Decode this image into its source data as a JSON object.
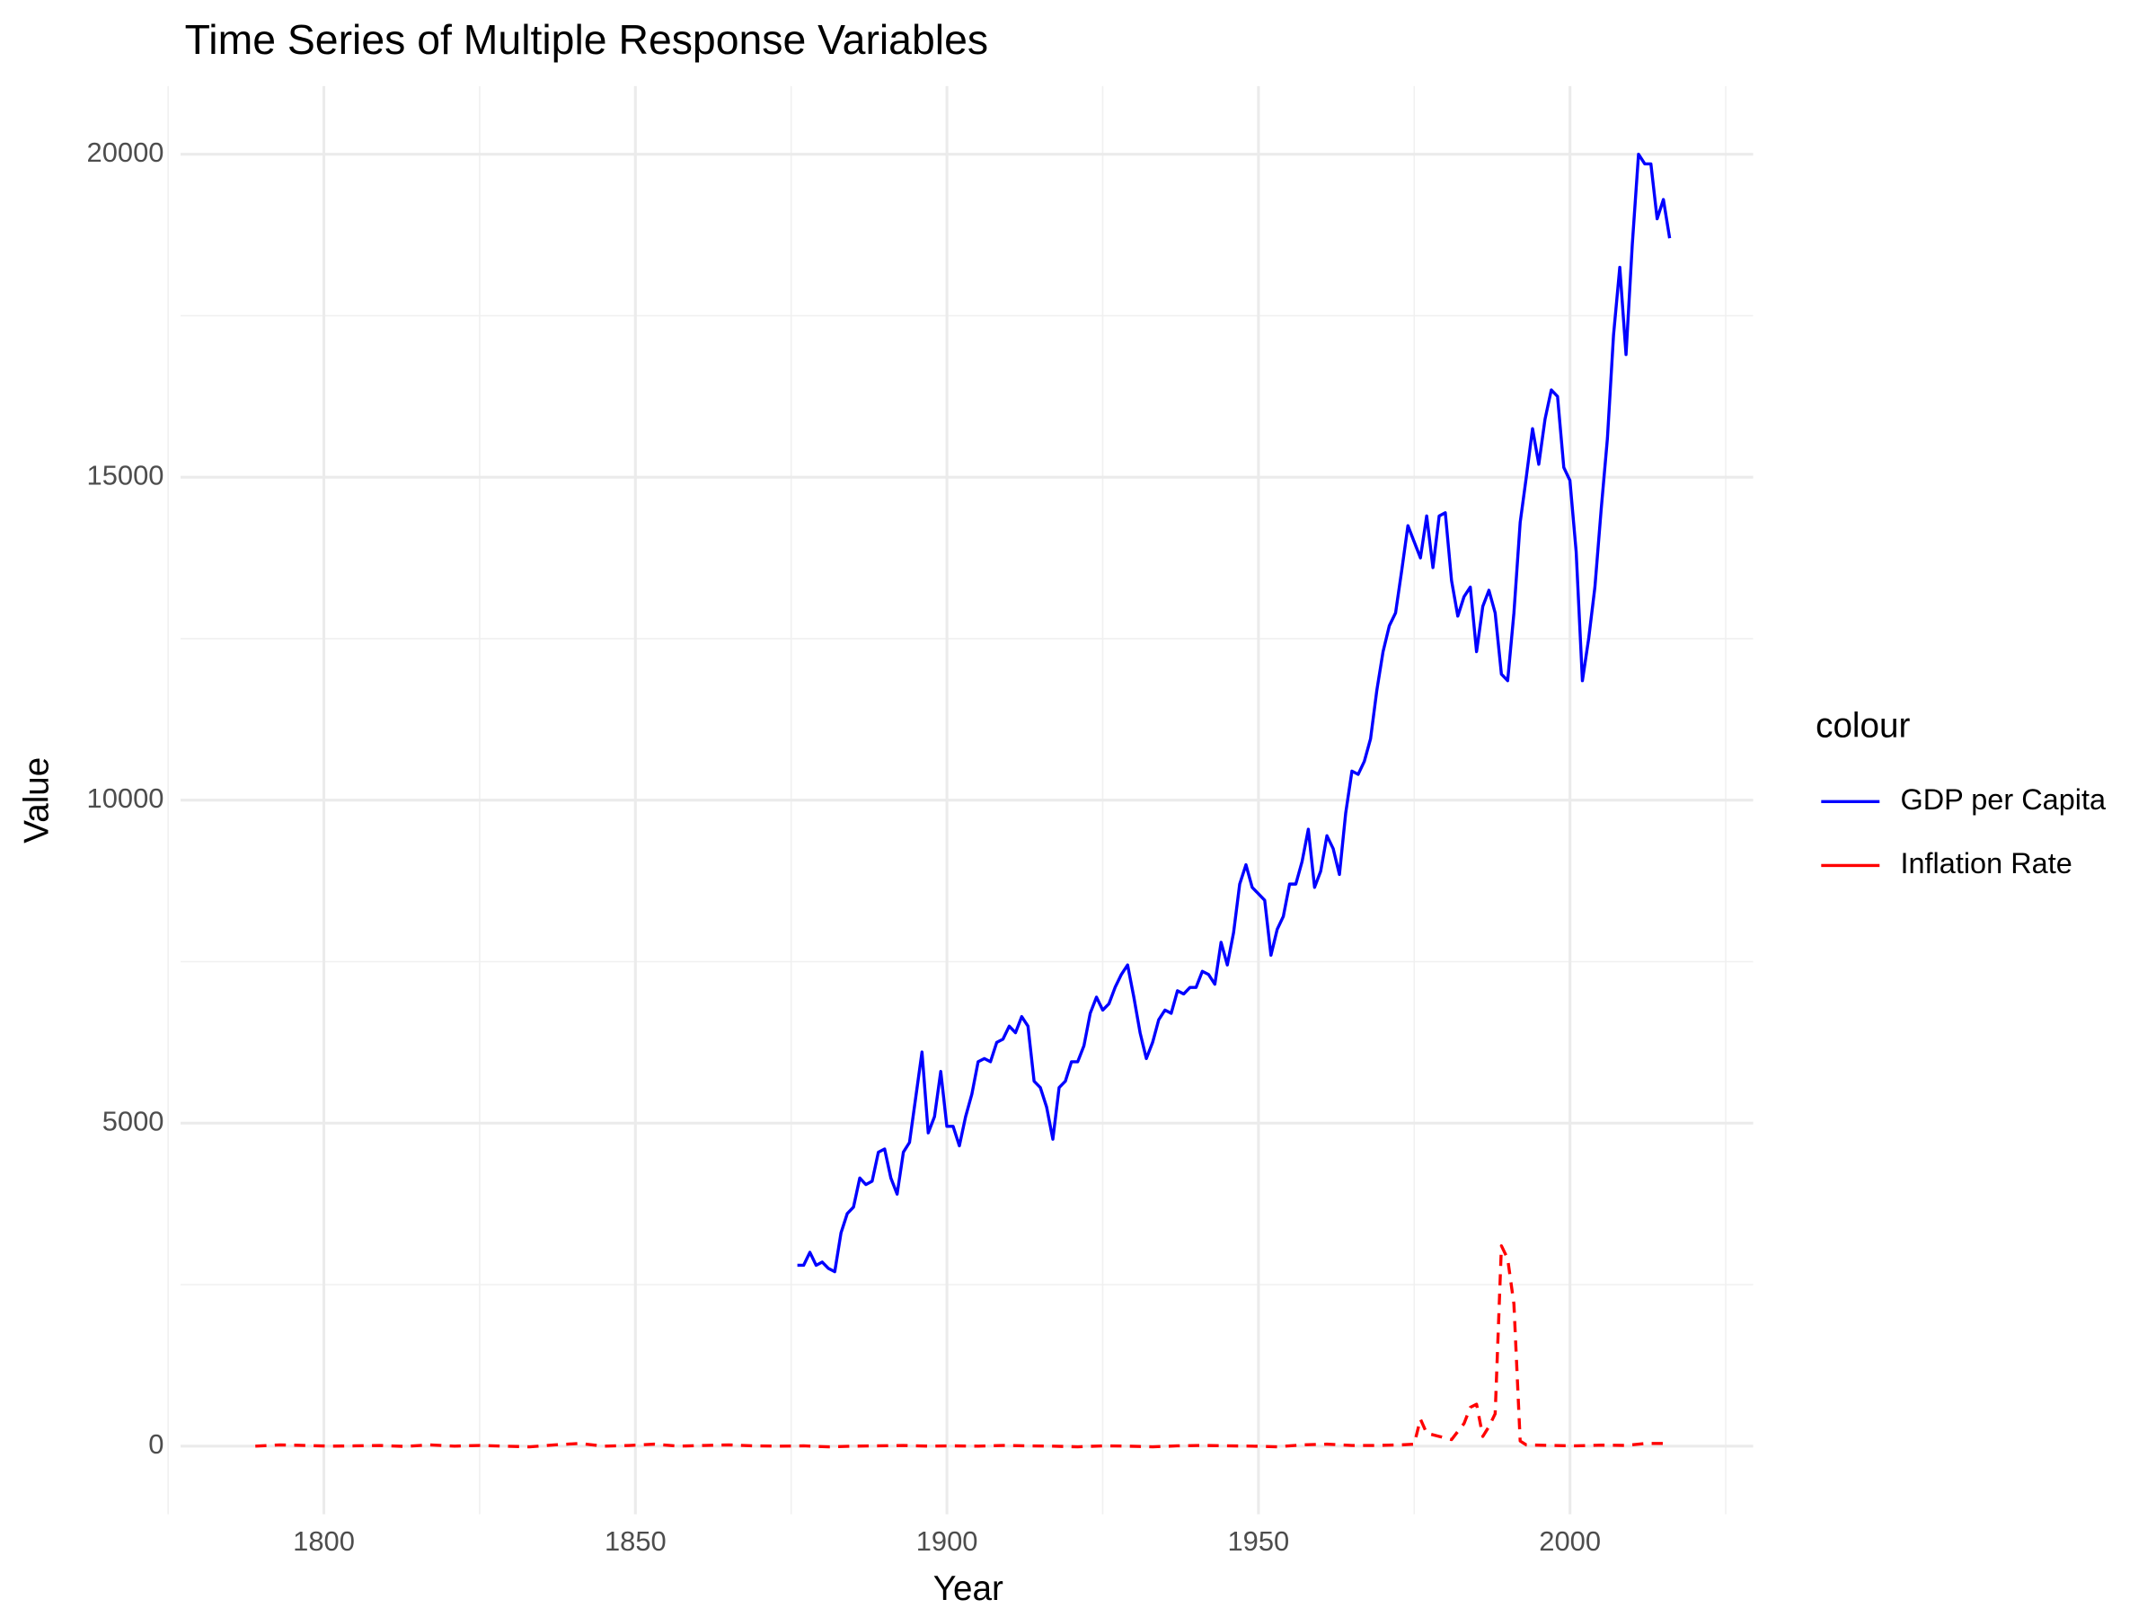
{
  "chart_data": {
    "type": "line",
    "title": "Time Series of Multiple Response Variables",
    "x_label": "Year",
    "y_label": "Value",
    "legend_title": "colour",
    "grid": true,
    "legend_position": "right",
    "xlim": [
      1777,
      2029.4
    ],
    "xticks": [
      1800,
      1850,
      1900,
      1950,
      2000
    ],
    "ylim": [
      -1054,
      21054
    ],
    "yticks": [
      0,
      5000,
      10000,
      15000,
      20000
    ],
    "series": [
      {
        "name": "GDP per Capita",
        "color": "#0000ff",
        "linestyle": "solid",
        "x": [
          1876,
          1877,
          1878,
          1879,
          1880,
          1881,
          1882,
          1883,
          1884,
          1885,
          1886,
          1887,
          1888,
          1889,
          1890,
          1891,
          1892,
          1893,
          1894,
          1895,
          1896,
          1897,
          1898,
          1899,
          1900,
          1901,
          1902,
          1903,
          1904,
          1905,
          1906,
          1907,
          1908,
          1909,
          1910,
          1911,
          1912,
          1913,
          1914,
          1915,
          1916,
          1917,
          1918,
          1919,
          1920,
          1921,
          1922,
          1923,
          1924,
          1925,
          1926,
          1927,
          1928,
          1929,
          1930,
          1931,
          1932,
          1933,
          1934,
          1935,
          1936,
          1937,
          1938,
          1939,
          1940,
          1941,
          1942,
          1943,
          1944,
          1945,
          1946,
          1947,
          1948,
          1949,
          1950,
          1951,
          1952,
          1953,
          1954,
          1955,
          1956,
          1957,
          1958,
          1959,
          1960,
          1961,
          1962,
          1963,
          1964,
          1965,
          1966,
          1967,
          1968,
          1969,
          1970,
          1971,
          1972,
          1973,
          1974,
          1975,
          1976,
          1977,
          1978,
          1979,
          1980,
          1981,
          1982,
          1983,
          1984,
          1985,
          1986,
          1987,
          1988,
          1989,
          1990,
          1991,
          1992,
          1993,
          1994,
          1995,
          1996,
          1997,
          1998,
          1999,
          2000,
          2001,
          2002,
          2003,
          2004,
          2005,
          2006,
          2007,
          2008,
          2009,
          2010,
          2011,
          2012,
          2013,
          2014,
          2015,
          2016
        ],
        "values": [
          2800,
          2800,
          3000,
          2800,
          2850,
          2750,
          2700,
          3300,
          3600,
          3700,
          4150,
          4050,
          4100,
          4550,
          4600,
          4150,
          3900,
          4550,
          4700,
          5400,
          6100,
          4850,
          5100,
          5800,
          4950,
          4950,
          4650,
          5100,
          5450,
          5950,
          6000,
          5950,
          6250,
          6300,
          6500,
          6400,
          6650,
          6500,
          5650,
          5550,
          5250,
          4750,
          5550,
          5650,
          5950,
          5950,
          6200,
          6700,
          6950,
          6750,
          6850,
          7100,
          7300,
          7450,
          6950,
          6400,
          6000,
          6250,
          6600,
          6750,
          6700,
          7050,
          7000,
          7100,
          7100,
          7350,
          7300,
          7150,
          7800,
          7450,
          7950,
          8700,
          9000,
          8650,
          8550,
          8450,
          7600,
          8000,
          8200,
          8700,
          8700,
          9050,
          9550,
          8650,
          8900,
          9450,
          9250,
          8850,
          9800,
          10450,
          10400,
          10600,
          10950,
          11700,
          12300,
          12700,
          12900,
          13550,
          14250,
          14000,
          13750,
          14400,
          13600,
          14400,
          14450,
          13400,
          12850,
          13150,
          13300,
          12300,
          13000,
          13250,
          12900,
          11950,
          11850,
          12900,
          14300,
          15000,
          15750,
          15200,
          15900,
          16350,
          16250,
          15150,
          14950,
          13850,
          11850,
          12500,
          13300,
          14500,
          15600,
          17200,
          18250,
          16900,
          18600,
          20000,
          19850,
          19850,
          19000,
          19300,
          18700
        ]
      },
      {
        "name": "Inflation Rate",
        "color": "#ff0000",
        "linestyle": "dashed",
        "x": [
          1789,
          1793,
          1797,
          1801,
          1805,
          1809,
          1813,
          1817,
          1821,
          1825,
          1829,
          1833,
          1837,
          1841,
          1845,
          1849,
          1853,
          1857,
          1861,
          1865,
          1869,
          1873,
          1877,
          1881,
          1885,
          1889,
          1893,
          1897,
          1901,
          1905,
          1909,
          1913,
          1917,
          1921,
          1925,
          1929,
          1933,
          1937,
          1941,
          1945,
          1949,
          1953,
          1957,
          1961,
          1965,
          1969,
          1973,
          1975,
          1976,
          1977,
          1979,
          1981,
          1983,
          1984,
          1985,
          1986,
          1987,
          1988,
          1989,
          1990,
          1991,
          1992,
          1993,
          1997,
          2001,
          2005,
          2009,
          2012,
          2016
        ],
        "values": [
          0,
          20,
          10,
          0,
          5,
          10,
          -5,
          20,
          0,
          10,
          0,
          -10,
          20,
          40,
          0,
          10,
          30,
          0,
          10,
          20,
          5,
          0,
          5,
          -10,
          0,
          5,
          10,
          0,
          5,
          0,
          10,
          5,
          0,
          -10,
          5,
          0,
          -10,
          5,
          10,
          5,
          0,
          -10,
          20,
          30,
          10,
          10,
          20,
          30,
          420,
          200,
          150,
          100,
          350,
          600,
          650,
          150,
          300,
          500,
          3100,
          2900,
          2200,
          80,
          20,
          10,
          5,
          15,
          10,
          40,
          40
        ]
      }
    ]
  }
}
